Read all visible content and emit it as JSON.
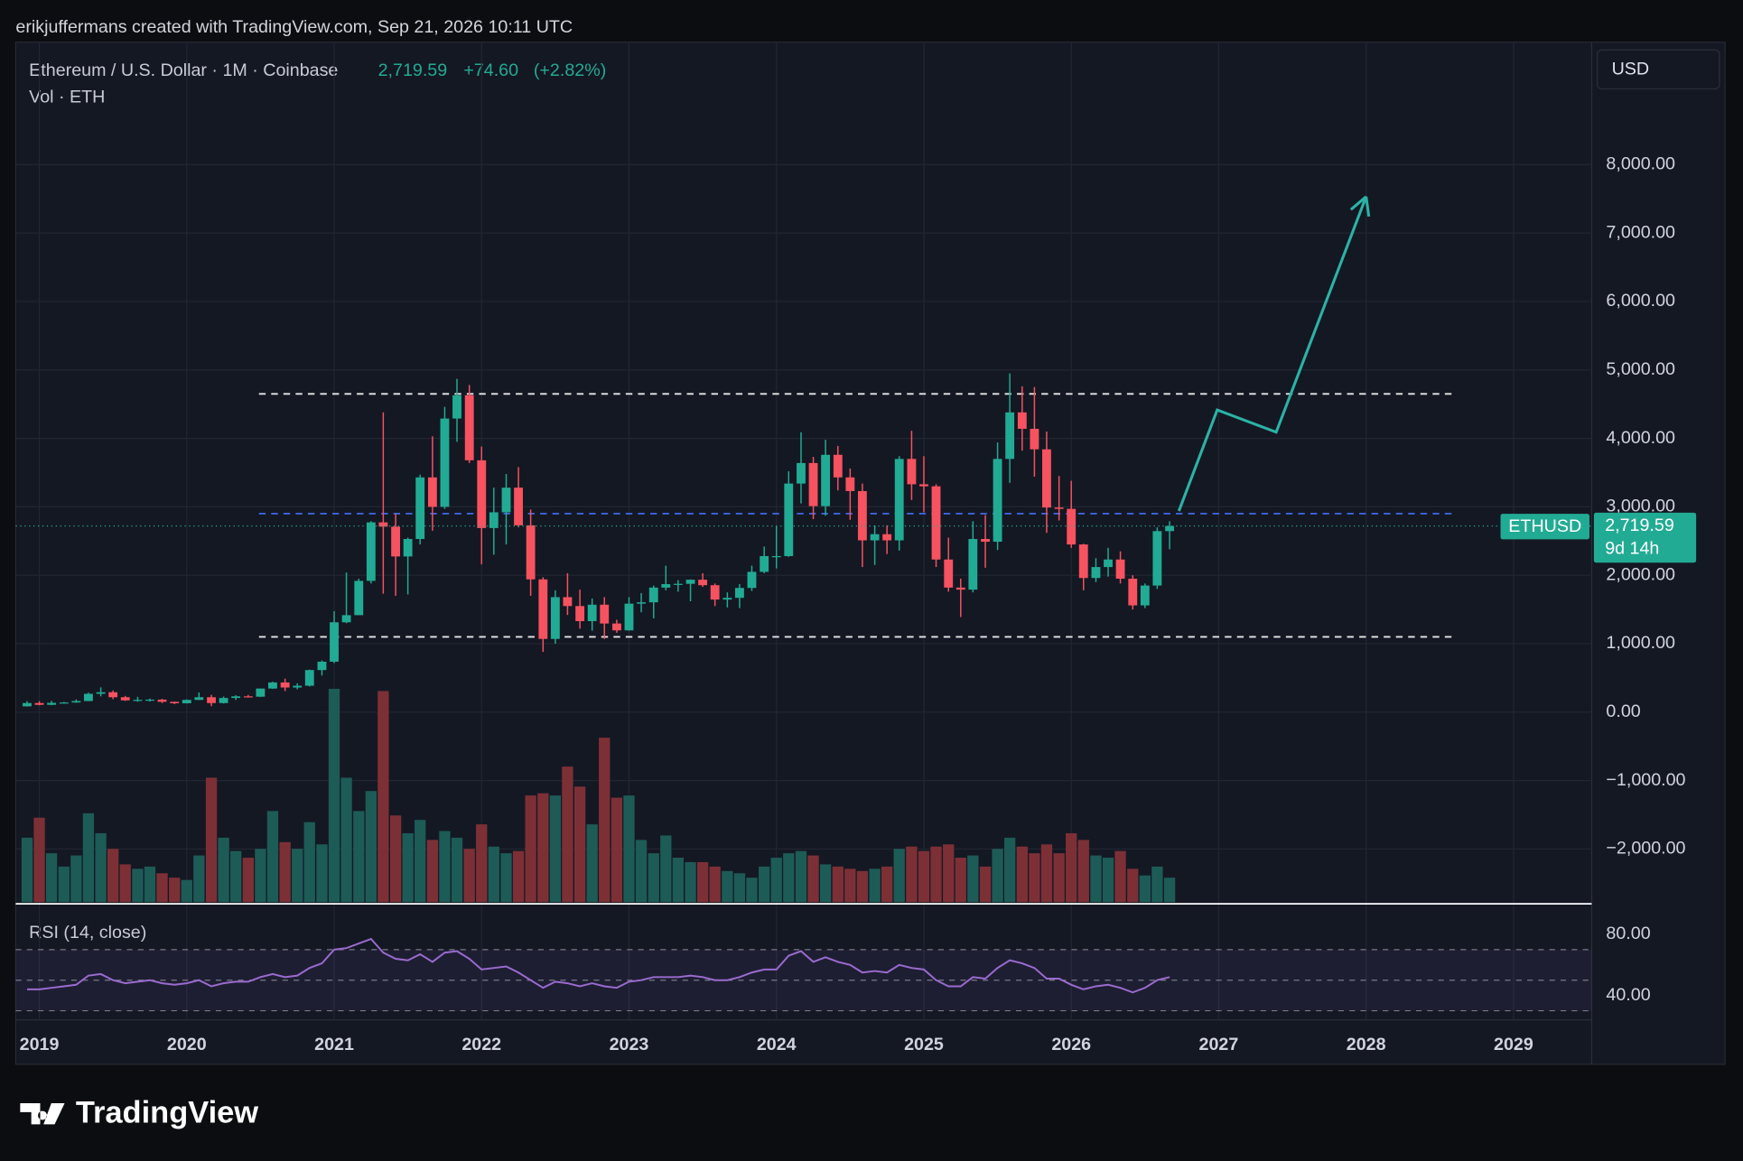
{
  "header": {
    "credit": "erikjuffermans created with TradingView.com, Sep 21, 2026 10:11 UTC",
    "symbol": "Ethereum / U.S. Dollar · 1M · Coinbase",
    "last": {
      "value": 2719.59,
      "label": "2,719.59"
    },
    "change": {
      "value": 74.6,
      "label": "+74.60"
    },
    "change_pct": {
      "value": 2.82,
      "label": "(+2.82%)"
    },
    "volume_legend": "Vol · ETH",
    "currency": "USD"
  },
  "chart_data": [
    {
      "type": "candlestick",
      "up_color": "#22ab94",
      "down_color": "#f7525f",
      "x": [
        2018.917,
        2019.0,
        2019.083,
        2019.167,
        2019.25,
        2019.333,
        2019.417,
        2019.5,
        2019.583,
        2019.667,
        2019.75,
        2019.833,
        2019.917,
        2020.0,
        2020.083,
        2020.167,
        2020.25,
        2020.333,
        2020.417,
        2020.5,
        2020.583,
        2020.667,
        2020.75,
        2020.833,
        2020.917,
        2021.0,
        2021.083,
        2021.167,
        2021.25,
        2021.333,
        2021.417,
        2021.5,
        2021.583,
        2021.667,
        2021.75,
        2021.833,
        2021.917,
        2022.0,
        2022.083,
        2022.167,
        2022.25,
        2022.333,
        2022.417,
        2022.5,
        2022.583,
        2022.667,
        2022.75,
        2022.833,
        2022.917,
        2023.0,
        2023.083,
        2023.167,
        2023.25,
        2023.333,
        2023.417,
        2023.5,
        2023.583,
        2023.667,
        2023.75,
        2023.833,
        2023.917,
        2024.0,
        2024.083,
        2024.167,
        2024.25,
        2024.333,
        2024.417,
        2024.5,
        2024.583,
        2024.667,
        2024.75,
        2024.833,
        2024.917,
        2025.0,
        2025.083,
        2025.167,
        2025.25,
        2025.333,
        2025.417,
        2025.5,
        2025.583,
        2025.667,
        2025.75,
        2025.833,
        2025.917,
        2026.0,
        2026.083,
        2026.167,
        2026.25,
        2026.333,
        2026.417,
        2026.5,
        2026.583,
        2026.667
      ],
      "open": [
        85,
        133,
        107,
        136,
        141,
        162,
        268,
        291,
        218,
        172,
        180,
        183,
        151,
        130,
        179,
        218,
        133,
        207,
        231,
        226,
        345,
        434,
        360,
        386,
        615,
        737,
        1313,
        1417,
        1918,
        2773,
        2710,
        2275,
        2530,
        3430,
        3000,
        4290,
        4630,
        3680,
        2690,
        2920,
        3280,
        2730,
        1940,
        1070,
        1680,
        1550,
        1330,
        1570,
        1295,
        1195,
        1585,
        1605,
        1820,
        1870,
        1875,
        1935,
        1855,
        1645,
        1670,
        1815,
        2050,
        2280,
        2280,
        3340,
        3640,
        3010,
        3760,
        3430,
        3230,
        2510,
        2600,
        2510,
        3700,
        3330,
        3300,
        2230,
        1820,
        1790,
        2530,
        2490,
        3700,
        4380,
        4140,
        3840,
        2990,
        2970,
        2450,
        1960,
        2120,
        2230,
        1950,
        1560,
        1850,
        2645
      ],
      "high": [
        160,
        160,
        165,
        150,
        185,
        285,
        362,
        317,
        237,
        224,
        198,
        194,
        153,
        185,
        288,
        253,
        228,
        247,
        252,
        346,
        445,
        489,
        420,
        622,
        755,
        1475,
        2040,
        1950,
        2790,
        4380,
        2900,
        2550,
        3470,
        4030,
        4460,
        4870,
        4780,
        3880,
        3280,
        3480,
        3580,
        2960,
        1970,
        1780,
        2030,
        1790,
        1660,
        1680,
        1350,
        1680,
        1740,
        1850,
        2140,
        1930,
        1940,
        2030,
        1880,
        1750,
        1870,
        2140,
        2420,
        2720,
        3520,
        4090,
        3730,
        3980,
        3890,
        3560,
        3340,
        2730,
        2730,
        3740,
        4110,
        3740,
        3330,
        2550,
        1950,
        2790,
        2880,
        3940,
        4950,
        4760,
        4750,
        4100,
        3450,
        3380,
        2460,
        2250,
        2400,
        2350,
        2000,
        1880,
        2700,
        2790
      ],
      "low": [
        82,
        101,
        102,
        126,
        137,
        161,
        231,
        190,
        164,
        152,
        155,
        133,
        117,
        127,
        178,
        88,
        126,
        178,
        215,
        220,
        340,
        308,
        334,
        375,
        535,
        717,
        1300,
        1530,
        1880,
        1730,
        1700,
        1720,
        2450,
        2650,
        2970,
        3950,
        3640,
        2160,
        2300,
        2450,
        2700,
        1700,
        880,
        1000,
        1420,
        1220,
        1190,
        1070,
        1160,
        1190,
        1460,
        1370,
        1780,
        1760,
        1620,
        1830,
        1550,
        1530,
        1520,
        1770,
        2030,
        2100,
        2270,
        3050,
        2820,
        2870,
        3240,
        2810,
        2120,
        2150,
        2310,
        2360,
        3100,
        2920,
        2120,
        1760,
        1390,
        1750,
        2110,
        2370,
        3350,
        3820,
        3440,
        2620,
        2800,
        2400,
        1780,
        1900,
        1980,
        1880,
        1500,
        1520,
        1800,
        2380
      ],
      "close": [
        133,
        107,
        136,
        141,
        162,
        268,
        291,
        218,
        172,
        180,
        183,
        151,
        130,
        179,
        218,
        133,
        207,
        231,
        226,
        345,
        434,
        360,
        386,
        615,
        737,
        1313,
        1417,
        1918,
        2773,
        2710,
        2275,
        2530,
        3430,
        3000,
        4290,
        4630,
        3680,
        2690,
        2920,
        3280,
        2730,
        1940,
        1070,
        1680,
        1550,
        1330,
        1570,
        1295,
        1195,
        1585,
        1605,
        1820,
        1870,
        1875,
        1935,
        1855,
        1645,
        1670,
        1815,
        2050,
        2280,
        2280,
        3340,
        3640,
        3010,
        3760,
        3430,
        3230,
        2510,
        2600,
        2510,
        3700,
        3330,
        3300,
        2230,
        1820,
        1790,
        2530,
        2490,
        3700,
        4380,
        4140,
        3840,
        2990,
        2970,
        2450,
        1960,
        2120,
        2230,
        1950,
        1560,
        1850,
        2645,
        2719.59
      ],
      "volume": {
        "up_color": "#1d5b57",
        "down_color": "#7c3036",
        "ylim": [
          0,
          200
        ],
        "values": [
          58,
          76,
          44,
          32,
          42,
          80,
          62,
          48,
          34,
          30,
          32,
          26,
          22,
          20,
          42,
          112,
          58,
          46,
          40,
          48,
          82,
          54,
          48,
          72,
          52,
          192,
          112,
          82,
          100,
          190,
          78,
          62,
          74,
          56,
          64,
          58,
          48,
          70,
          50,
          44,
          46,
          96,
          98,
          96,
          122,
          104,
          70,
          148,
          94,
          96,
          56,
          44,
          60,
          40,
          36,
          36,
          32,
          28,
          26,
          22,
          32,
          40,
          44,
          46,
          42,
          34,
          32,
          30,
          28,
          30,
          32,
          48,
          50,
          46,
          50,
          52,
          40,
          42,
          32,
          48,
          58,
          50,
          44,
          52,
          44,
          62,
          56,
          42,
          40,
          46,
          30,
          24,
          32,
          22
        ]
      },
      "xlim": [
        2018.84,
        2029.53
      ],
      "xticks": [
        2019,
        2020,
        2021,
        2022,
        2023,
        2024,
        2025,
        2026,
        2027,
        2028,
        2029
      ],
      "ylim": [
        -2776,
        9756
      ],
      "yticks": [
        {
          "value": -2000,
          "label": "−2,000.00"
        },
        {
          "value": -1000,
          "label": "−1,000.00"
        },
        {
          "value": 0,
          "label": "0.00"
        },
        {
          "value": 1000,
          "label": "1,000.00"
        },
        {
          "value": 2000,
          "label": "2,000.00"
        },
        {
          "value": 3000,
          "label": "3,000.00"
        },
        {
          "value": 4000,
          "label": "4,000.00"
        },
        {
          "value": 5000,
          "label": "5,000.00"
        },
        {
          "value": 6000,
          "label": "6,000.00"
        },
        {
          "value": 7000,
          "label": "7,000.00"
        },
        {
          "value": 8000,
          "label": "8,000.00"
        }
      ],
      "grid": true,
      "price_label": {
        "value": 2719.59,
        "label": "2,719.59"
      },
      "symbol_tag": "ETHUSD",
      "countdown": "9d 14h",
      "levels": [
        {
          "price": 4650,
          "from": 2020.49,
          "to": 2028.58,
          "color": "#e6e6e6"
        },
        {
          "price": 1100,
          "from": 2020.49,
          "to": 2028.58,
          "color": "#e6e6e6"
        },
        {
          "price": 2900,
          "from": 2020.49,
          "to": 2028.58,
          "color": "#3d63e0"
        }
      ],
      "arrow": {
        "color": "#2bb3a6",
        "x": [
          2026.73,
          2026.99,
          2027.39,
          2028.0
        ],
        "y": [
          2938,
          4416,
          4091,
          7532
        ]
      }
    },
    {
      "type": "line",
      "title": "RSI (14, close)",
      "color": "#9b6bd0",
      "values": [
        44,
        44,
        45,
        46,
        47,
        53,
        54,
        50,
        48,
        49,
        50,
        48,
        47,
        48,
        50,
        46,
        48,
        49,
        49,
        52,
        54,
        52,
        53,
        58,
        61,
        70,
        71,
        74,
        77,
        68,
        64,
        63,
        67,
        62,
        68,
        69,
        64,
        57,
        58,
        59,
        55,
        50,
        45,
        49,
        48,
        46,
        48,
        46,
        45,
        49,
        50,
        52,
        52,
        52,
        53,
        52,
        50,
        50,
        52,
        55,
        57,
        57,
        66,
        69,
        62,
        65,
        62,
        60,
        55,
        56,
        55,
        60,
        58,
        57,
        50,
        46,
        46,
        52,
        51,
        58,
        63,
        61,
        58,
        51,
        51,
        47,
        44,
        46,
        47,
        45,
        42,
        45,
        50,
        52
      ],
      "ylim": [
        24,
        98.9
      ],
      "yticks": [
        {
          "value": 40,
          "label": "40.00"
        },
        {
          "value": 80,
          "label": "80.00"
        }
      ],
      "levels": [
        30,
        50,
        70
      ]
    }
  ],
  "footer": {
    "logo": "TradingView"
  }
}
